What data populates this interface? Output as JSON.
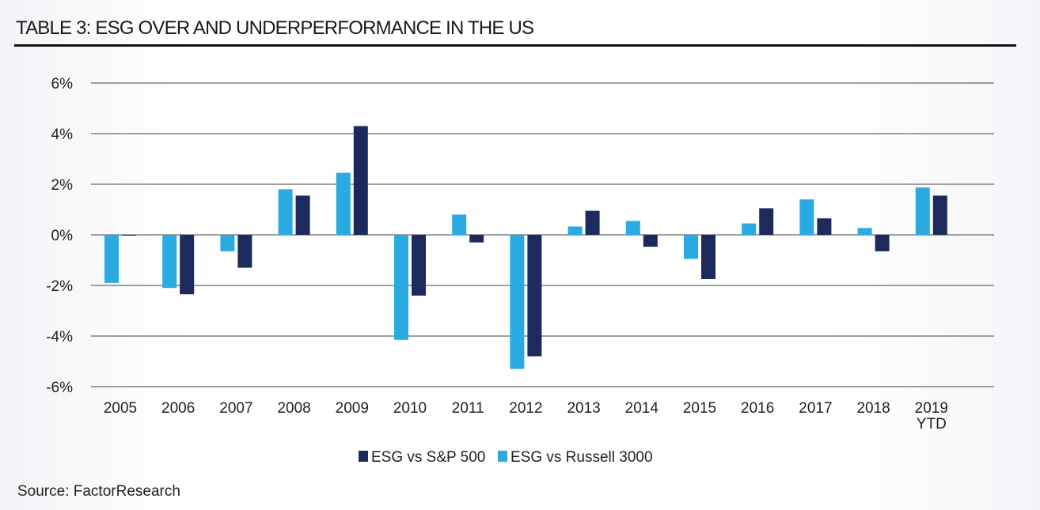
{
  "header": {
    "title": "TABLE 3: ESG OVER AND UNDERPERFORMANCE IN THE US"
  },
  "footer": {
    "source": "Source: FactorResearch"
  },
  "chart_data": {
    "type": "bar",
    "title": "TABLE 3: ESG OVER AND UNDERPERFORMANCE IN THE US",
    "xlabel": "",
    "ylabel": "",
    "categories": [
      "2005",
      "2006",
      "2007",
      "2008",
      "2009",
      "2010",
      "2011",
      "2012",
      "2013",
      "2014",
      "2015",
      "2016",
      "2017",
      "2018",
      "2019 YTD"
    ],
    "category_labels": [
      [
        "2005"
      ],
      [
        "2006"
      ],
      [
        "2007"
      ],
      [
        "2008"
      ],
      [
        "2009"
      ],
      [
        "2010"
      ],
      [
        "2011"
      ],
      [
        "2012"
      ],
      [
        "2013"
      ],
      [
        "2014"
      ],
      [
        "2015"
      ],
      [
        "2016"
      ],
      [
        "2017"
      ],
      [
        "2018"
      ],
      [
        "2019",
        "YTD"
      ]
    ],
    "ylim": [
      -6,
      6
    ],
    "yticks": [
      6,
      4,
      2,
      0,
      -2,
      -4,
      -6
    ],
    "ytick_labels": [
      "6%",
      "4%",
      "2%",
      "0%",
      "-2%",
      "-4%",
      "-6%"
    ],
    "grid": true,
    "legend_position": "bottom",
    "series": [
      {
        "name": "ESG vs Russell 3000",
        "color": "#29abe2",
        "values": [
          -1.9,
          -2.1,
          -0.65,
          1.8,
          2.45,
          -4.15,
          0.8,
          -5.3,
          0.33,
          0.55,
          -0.95,
          0.45,
          1.4,
          0.27,
          1.87
        ]
      },
      {
        "name": "ESG vs S&P 500",
        "color": "#1c2a5e",
        "values": [
          -0.03,
          -2.35,
          -1.3,
          1.55,
          4.3,
          -2.4,
          -0.3,
          -4.8,
          0.95,
          -0.47,
          -1.75,
          1.05,
          0.65,
          -0.65,
          1.55
        ]
      }
    ],
    "legend": [
      {
        "name": "ESG vs S&P 500",
        "color": "#1c2a5e"
      },
      {
        "name": "ESG vs Russell 3000",
        "color": "#29abe2"
      }
    ]
  }
}
